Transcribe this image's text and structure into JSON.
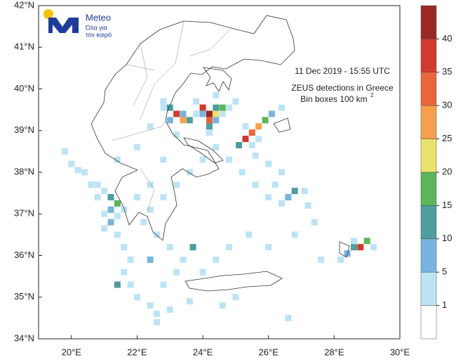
{
  "logo": {
    "name": "Meteo",
    "tagline_1": "Όλα για",
    "tagline_2": "τον καιρό"
  },
  "chart_data": {
    "type": "map",
    "annotation_1": "11  Dec 2019 - 15:55 UTC",
    "annotation_2": "ZEUS detections in Greece",
    "annotation_3": "Bin boxes 100 km",
    "annotation_3_exponent": "2",
    "xlim": [
      19,
      30
    ],
    "ylim": [
      34,
      42
    ],
    "xticks": [
      {
        "value": 20,
        "label": "20°E"
      },
      {
        "value": 22,
        "label": "22°E"
      },
      {
        "value": 24,
        "label": "24°E"
      },
      {
        "value": 26,
        "label": "26°E"
      },
      {
        "value": 28,
        "label": "28°E"
      },
      {
        "value": 30,
        "label": "30°E"
      }
    ],
    "yticks": [
      {
        "value": 34,
        "label": "34°N"
      },
      {
        "value": 35,
        "label": "35°N"
      },
      {
        "value": 36,
        "label": "36°N"
      },
      {
        "value": 37,
        "label": "37°N"
      },
      {
        "value": 38,
        "label": "38°N"
      },
      {
        "value": 39,
        "label": "39°N"
      },
      {
        "value": 40,
        "label": "40°N"
      },
      {
        "value": 41,
        "label": "41°N"
      },
      {
        "value": 42,
        "label": "42°N"
      }
    ],
    "colorbar": {
      "levels": [
        1,
        5,
        10,
        15,
        20,
        25,
        30,
        35,
        40
      ],
      "colors": [
        "#ffffff",
        "#bde4f4",
        "#78b4de",
        "#4e9d9f",
        "#5db55a",
        "#e9e26c",
        "#f6a04c",
        "#e9663d",
        "#d23a2e",
        "#9b2727"
      ]
    },
    "cells": [
      [
        24.2,
        39.4,
        42
      ],
      [
        24.0,
        39.55,
        36
      ],
      [
        24.2,
        39.25,
        30
      ],
      [
        24.4,
        39.4,
        22
      ],
      [
        24.6,
        39.55,
        18
      ],
      [
        24.4,
        39.55,
        12
      ],
      [
        24.0,
        39.4,
        8
      ],
      [
        24.2,
        39.1,
        12
      ],
      [
        24.4,
        39.25,
        6
      ],
      [
        24.2,
        38.95,
        3
      ],
      [
        24.6,
        39.4,
        4
      ],
      [
        24.8,
        39.55,
        3
      ],
      [
        23.2,
        39.4,
        38
      ],
      [
        23.0,
        39.55,
        12
      ],
      [
        23.4,
        39.25,
        26
      ],
      [
        23.6,
        39.25,
        14
      ],
      [
        23.0,
        39.25,
        8
      ],
      [
        23.4,
        39.4,
        6
      ],
      [
        22.8,
        39.55,
        3
      ],
      [
        23.8,
        39.4,
        4
      ],
      [
        22.8,
        39.7,
        2
      ],
      [
        25.3,
        38.8,
        37
      ],
      [
        25.5,
        38.95,
        33
      ],
      [
        25.7,
        39.1,
        28
      ],
      [
        25.1,
        38.65,
        10
      ],
      [
        25.9,
        39.25,
        18
      ],
      [
        25.5,
        38.65,
        4
      ],
      [
        25.7,
        38.8,
        3
      ],
      [
        26.1,
        39.4,
        6
      ],
      [
        25.3,
        39.1,
        2
      ],
      [
        28.8,
        36.2,
        36
      ],
      [
        28.6,
        36.2,
        12
      ],
      [
        29.0,
        36.35,
        16
      ],
      [
        28.4,
        36.05,
        6
      ],
      [
        28.2,
        35.9,
        3
      ],
      [
        28.6,
        36.35,
        4
      ],
      [
        29.2,
        36.2,
        2
      ],
      [
        21.2,
        37.4,
        12
      ],
      [
        21.4,
        37.25,
        18
      ],
      [
        21.2,
        37.1,
        8
      ],
      [
        21.0,
        37.55,
        4
      ],
      [
        21.6,
        37.1,
        4
      ],
      [
        21.4,
        36.95,
        3
      ],
      [
        21.2,
        36.8,
        6
      ],
      [
        21.0,
        36.65,
        3
      ],
      [
        23.7,
        36.2,
        14
      ],
      [
        21.4,
        35.3,
        12
      ],
      [
        22.4,
        35.9,
        6
      ],
      [
        20.8,
        37.7,
        3
      ],
      [
        20.2,
        38.05,
        3
      ],
      [
        26.6,
        37.4,
        6
      ],
      [
        26.8,
        37.55,
        12
      ],
      [
        26.4,
        37.25,
        3
      ],
      [
        27.1,
        37.55,
        4
      ],
      [
        20.0,
        38.2,
        2
      ],
      [
        19.8,
        38.5,
        2
      ],
      [
        20.4,
        38.0,
        2
      ],
      [
        20.6,
        37.7,
        2
      ],
      [
        20.8,
        37.4,
        2
      ],
      [
        21.0,
        37.0,
        2
      ],
      [
        21.4,
        36.5,
        2
      ],
      [
        21.6,
        36.2,
        2
      ],
      [
        21.8,
        35.9,
        2
      ],
      [
        21.6,
        35.6,
        2
      ],
      [
        21.8,
        35.3,
        2
      ],
      [
        22.0,
        35.0,
        2
      ],
      [
        22.4,
        34.8,
        2
      ],
      [
        22.6,
        34.6,
        2
      ],
      [
        22.8,
        35.3,
        2
      ],
      [
        23.2,
        35.6,
        2
      ],
      [
        23.4,
        35.9,
        2
      ],
      [
        23.0,
        36.2,
        2
      ],
      [
        22.6,
        36.5,
        2
      ],
      [
        22.2,
        36.8,
        2
      ],
      [
        22.4,
        37.1,
        2
      ],
      [
        22.0,
        37.4,
        2
      ],
      [
        22.4,
        37.7,
        2
      ],
      [
        22.8,
        37.4,
        2
      ],
      [
        23.2,
        37.7,
        2
      ],
      [
        23.6,
        38.0,
        2
      ],
      [
        24.0,
        38.3,
        2
      ],
      [
        24.4,
        38.6,
        2
      ],
      [
        24.8,
        38.3,
        2
      ],
      [
        25.2,
        38.0,
        2
      ],
      [
        25.6,
        37.7,
        2
      ],
      [
        26.0,
        37.4,
        2
      ],
      [
        26.2,
        37.7,
        2
      ],
      [
        26.4,
        38.0,
        2
      ],
      [
        27.2,
        37.2,
        2
      ],
      [
        27.4,
        36.8,
        2
      ],
      [
        26.8,
        36.5,
        2
      ],
      [
        26.0,
        36.2,
        2
      ],
      [
        25.4,
        36.5,
        2
      ],
      [
        24.8,
        36.2,
        2
      ],
      [
        24.4,
        35.9,
        2
      ],
      [
        24.0,
        35.6,
        2
      ],
      [
        25.0,
        35.0,
        2
      ],
      [
        24.6,
        34.8,
        2
      ],
      [
        23.6,
        34.9,
        2
      ],
      [
        23.0,
        34.7,
        2
      ],
      [
        22.6,
        34.4,
        2
      ],
      [
        26.6,
        34.5,
        2
      ],
      [
        27.6,
        35.9,
        2
      ],
      [
        22.8,
        38.3,
        2
      ],
      [
        22.0,
        38.6,
        2
      ],
      [
        21.4,
        38.3,
        2
      ],
      [
        23.2,
        38.9,
        2
      ],
      [
        22.4,
        39.1,
        2
      ],
      [
        23.8,
        39.7,
        2
      ],
      [
        24.4,
        39.85,
        2
      ],
      [
        25.0,
        39.7,
        2
      ],
      [
        26.4,
        39.55,
        2
      ],
      [
        25.6,
        38.4,
        2
      ],
      [
        26.0,
        38.2,
        2
      ]
    ]
  }
}
